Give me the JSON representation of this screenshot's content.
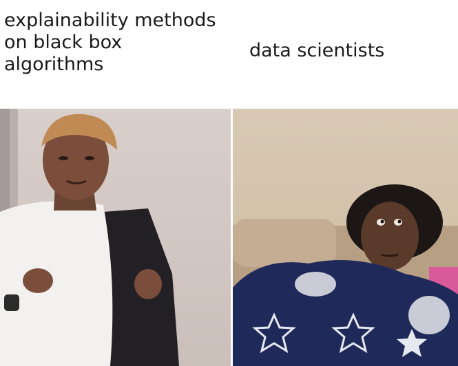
{
  "captions": {
    "left_lines": [
      "explainability methods",
      "on black box",
      "algorithms"
    ],
    "right": "data scientists"
  },
  "colors": {
    "background": "#ffffff",
    "text": "#1a1a1a",
    "left_wall": "#d4c9c4",
    "right_wall": "#d6c6b0",
    "couch": "#b79f84",
    "blanket": "#1f2a5a"
  }
}
